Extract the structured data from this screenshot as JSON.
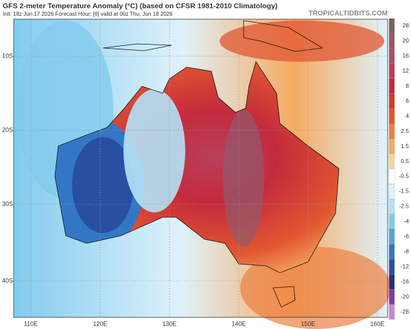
{
  "header": {
    "title": "GFS 2-meter Temperature Anomaly (°C) (based on CFSR 1981-2010 Climatology)",
    "subtitle": "Init: 18z Jun 17 2026   Forecast Hour: [6]   valid at 00z Thu, Jun 18 2026",
    "brand": "TROPICALTIDBITS.COM"
  },
  "map": {
    "lat_labels": [
      "10S",
      "20S",
      "30S",
      "40S"
    ],
    "lon_labels": [
      "110E",
      "120E",
      "130E",
      "140E",
      "150E",
      "160E"
    ]
  },
  "colorbar": {
    "labels": [
      28,
      20,
      16,
      12,
      8,
      6,
      4,
      2.5,
      1.5,
      0.5,
      -0.5,
      -1.5,
      -2.5,
      -4,
      -6,
      -8,
      -12,
      -16,
      -20,
      -28
    ],
    "colors": [
      "#7d5e5e",
      "#925a6c",
      "#a8506c",
      "#b9405c",
      "#c42a3c",
      "#d3382c",
      "#e25630",
      "#ee8042",
      "#f5ab62",
      "#fad49a",
      "#ffffff",
      "#dff2fb",
      "#b4e2f5",
      "#82cbee",
      "#55a4de",
      "#3476c6",
      "#2a4ea2",
      "#27307e",
      "#7c3ca8",
      "#c987d8"
    ]
  }
}
